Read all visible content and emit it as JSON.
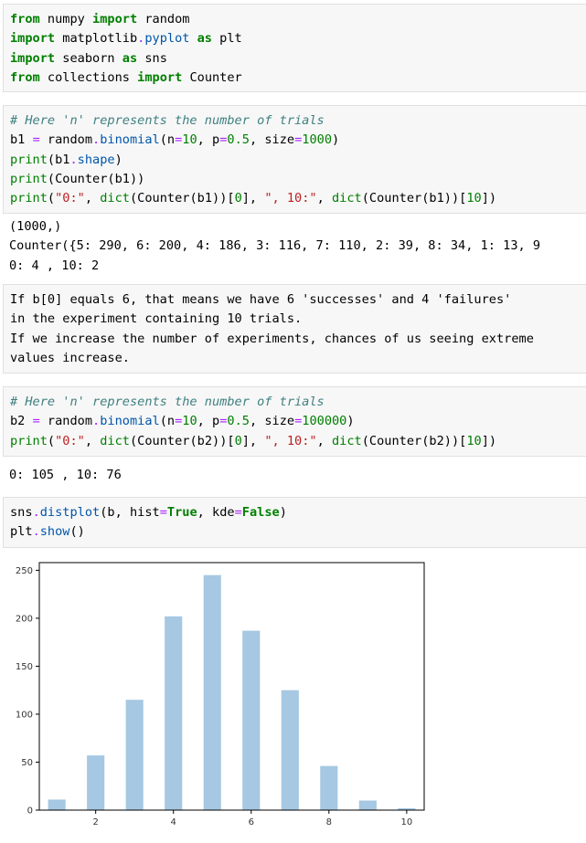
{
  "cell1": {
    "l1": {
      "k1": "from",
      "a": " numpy ",
      "k2": "import",
      "b": " random"
    },
    "l2": {
      "k1": "import",
      "a": " matplotlib",
      "op": ".",
      "fn": "pyplot",
      "b": " ",
      "k2": "as",
      "c": " plt"
    },
    "l3": {
      "k1": "import",
      "a": " seaborn ",
      "k2": "as",
      "b": " sns"
    },
    "l4": {
      "k1": "from",
      "a": " collections ",
      "k2": "import",
      "b": " Counter"
    }
  },
  "cell2": {
    "comment": "# Here 'n' represents the number of trials",
    "l2": {
      "a": "b1 ",
      "eq": "=",
      "b": " random",
      "dot": ".",
      "fn": "binomial",
      "c": "(n",
      "e1": "=",
      "n1": "10",
      "d": ", p",
      "e2": "=",
      "n2": "0.5",
      "e": ", size",
      "e3": "=",
      "n3": "1000",
      "f": ")"
    },
    "l3": {
      "fn": "print",
      "a": "(b1",
      "dot": ".",
      "fn2": "shape",
      "b": ")"
    },
    "l4": {
      "fn": "print",
      "a": "(Counter(b1))"
    },
    "l5": {
      "fn": "print",
      "a": "(",
      "s1": "\"0:\"",
      "b": ", ",
      "fn2": "dict",
      "c": "(Counter(b1))[",
      "n1": "0",
      "d": "], ",
      "s2": "\", 10:\"",
      "e": ", ",
      "fn3": "dict",
      "f": "(Counter(b1))[",
      "n2": "10",
      "g": "])"
    }
  },
  "out2": {
    "l1": "(1000,)",
    "l2": "Counter({5: 290, 6: 200, 4: 186, 3: 116, 7: 110, 2: 39, 8: 34, 1: 13, 9",
    "l3": "0: 4 , 10: 2"
  },
  "md": {
    "l1": "If b[0] equals 6, that means we have 6 'successes' and 4 'failures'",
    "l2": "in the experiment containing 10 trials.",
    "l3": "If we increase the number of experiments, chances of us seeing extreme",
    "l4": "values increase."
  },
  "cell3": {
    "comment": "# Here 'n' represents the number of trials",
    "l2": {
      "a": "b2 ",
      "eq": "=",
      "b": " random",
      "dot": ".",
      "fn": "binomial",
      "c": "(n",
      "e1": "=",
      "n1": "10",
      "d": ", p",
      "e2": "=",
      "n2": "0.5",
      "e": ", size",
      "e3": "=",
      "n3": "100000",
      "f": ")"
    },
    "l3": {
      "fn": "print",
      "a": "(",
      "s1": "\"0:\"",
      "b": ", ",
      "fn2": "dict",
      "c": "(Counter(b2))[",
      "n1": "0",
      "d": "], ",
      "s2": "\", 10:\"",
      "e": ", ",
      "fn3": "dict",
      "f": "(Counter(b2))[",
      "n2": "10",
      "g": "])"
    }
  },
  "out3": {
    "l1": "0: 105 , 10: 76"
  },
  "cell4": {
    "l1": {
      "a": "sns",
      "dot": ".",
      "fn": "distplot",
      "b": "(b, hist",
      "e1": "=",
      "k1": "True",
      "c": ", kde",
      "e2": "=",
      "k2": "False",
      "d": ")"
    },
    "l2": {
      "a": "plt",
      "dot": ".",
      "fn": "show",
      "b": "()"
    }
  },
  "chart_data": {
    "type": "bar",
    "x": [
      1,
      2,
      3,
      4,
      5,
      6,
      7,
      8,
      9,
      10
    ],
    "values": [
      11,
      57,
      115,
      202,
      245,
      187,
      125,
      46,
      10,
      2
    ],
    "xticks": [
      "2",
      "4",
      "6",
      "8",
      "10"
    ],
    "yticks": [
      "0",
      "50",
      "100",
      "150",
      "200",
      "250"
    ],
    "xlim": [
      0.55,
      10.45
    ],
    "ylim": [
      0,
      258
    ],
    "color": "#a6c8e2",
    "title": "",
    "xlabel": "",
    "ylabel": ""
  }
}
